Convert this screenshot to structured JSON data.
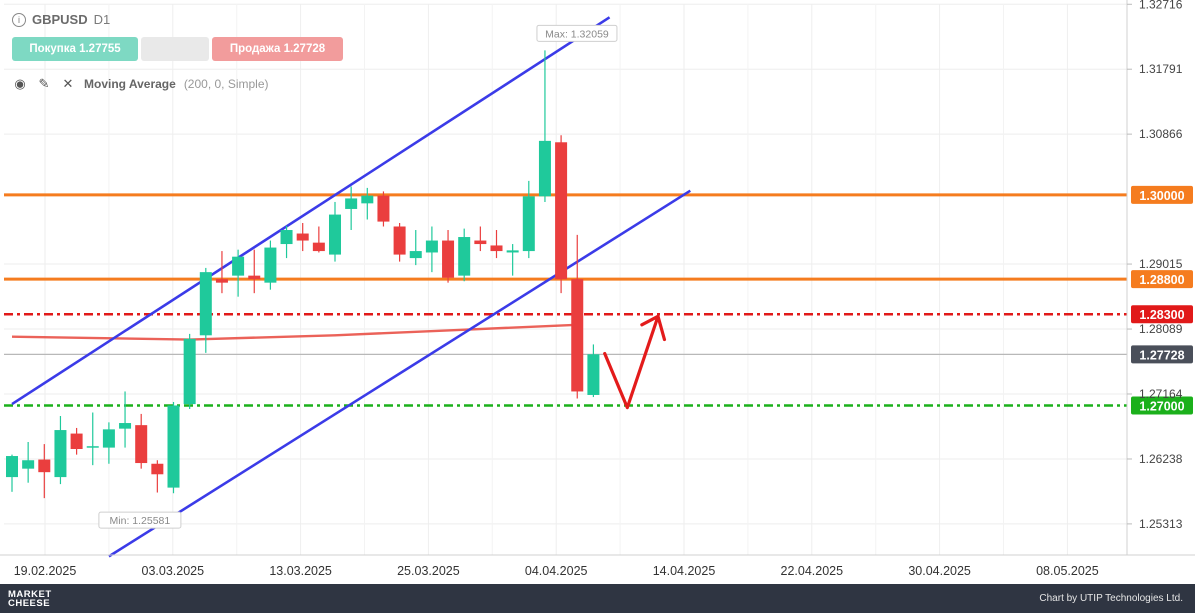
{
  "header": {
    "symbol": "GBPUSD",
    "timeframe": "D1",
    "buy_label": "Покупка 1.27755",
    "sell_label": "Продажа 1.27728",
    "indicator_name": "Moving Average",
    "indicator_params": "(200, 0, Simple)"
  },
  "footer": {
    "brand_line1": "MARKET",
    "brand_line2": "CHEESE",
    "credit": "Chart by UTIP Technologies Ltd."
  },
  "chart_data": {
    "type": "candlestick",
    "ylim": [
      1.2487,
      1.3272
    ],
    "price_axis_ticks": [
      "1.32716",
      "1.31791",
      "1.30866",
      "1.29015",
      "1.28089",
      "1.27164",
      "1.26238",
      "1.25313"
    ],
    "x_ticks": [
      "19.02.2025",
      "03.03.2025",
      "13.03.2025",
      "25.03.2025",
      "04.04.2025",
      "14.04.2025",
      "22.04.2025",
      "30.04.2025",
      "08.05.2025"
    ],
    "max_label": "Max: 1.32059",
    "min_label": "Min: 1.25581",
    "current_price_label": "1.27728",
    "candles": [
      {
        "o": 1.2598,
        "h": 1.263,
        "l": 1.2577,
        "c": 1.2628
      },
      {
        "o": 1.261,
        "h": 1.2648,
        "l": 1.259,
        "c": 1.2622
      },
      {
        "o": 1.2623,
        "h": 1.2645,
        "l": 1.2568,
        "c": 1.2605
      },
      {
        "o": 1.2598,
        "h": 1.2685,
        "l": 1.2588,
        "c": 1.2665
      },
      {
        "o": 1.266,
        "h": 1.2668,
        "l": 1.263,
        "c": 1.2638
      },
      {
        "o": 1.264,
        "h": 1.269,
        "l": 1.2615,
        "c": 1.2642
      },
      {
        "o": 1.264,
        "h": 1.2676,
        "l": 1.2617,
        "c": 1.2666
      },
      {
        "o": 1.2667,
        "h": 1.272,
        "l": 1.264,
        "c": 1.2675
      },
      {
        "o": 1.2672,
        "h": 1.2688,
        "l": 1.261,
        "c": 1.2618
      },
      {
        "o": 1.2617,
        "h": 1.2622,
        "l": 1.2576,
        "c": 1.2602
      },
      {
        "o": 1.2583,
        "h": 1.2705,
        "l": 1.2575,
        "c": 1.27
      },
      {
        "o": 1.2702,
        "h": 1.2802,
        "l": 1.2695,
        "c": 1.2795
      },
      {
        "o": 1.28,
        "h": 1.2896,
        "l": 1.2775,
        "c": 1.289
      },
      {
        "o": 1.288,
        "h": 1.292,
        "l": 1.286,
        "c": 1.2875
      },
      {
        "o": 1.2885,
        "h": 1.2922,
        "l": 1.2855,
        "c": 1.2912
      },
      {
        "o": 1.2885,
        "h": 1.2922,
        "l": 1.286,
        "c": 1.288
      },
      {
        "o": 1.2875,
        "h": 1.2935,
        "l": 1.2865,
        "c": 1.2925
      },
      {
        "o": 1.293,
        "h": 1.2956,
        "l": 1.291,
        "c": 1.295
      },
      {
        "o": 1.2945,
        "h": 1.296,
        "l": 1.292,
        "c": 1.2935
      },
      {
        "o": 1.2932,
        "h": 1.2955,
        "l": 1.2918,
        "c": 1.292
      },
      {
        "o": 1.2915,
        "h": 1.299,
        "l": 1.2905,
        "c": 1.2972
      },
      {
        "o": 1.298,
        "h": 1.3012,
        "l": 1.295,
        "c": 1.2995
      },
      {
        "o": 1.2988,
        "h": 1.301,
        "l": 1.2965,
        "c": 1.2999
      },
      {
        "o": 1.2999,
        "h": 1.3005,
        "l": 1.2955,
        "c": 1.2962
      },
      {
        "o": 1.2955,
        "h": 1.296,
        "l": 1.2905,
        "c": 1.2915
      },
      {
        "o": 1.291,
        "h": 1.295,
        "l": 1.29,
        "c": 1.292
      },
      {
        "o": 1.2918,
        "h": 1.2955,
        "l": 1.289,
        "c": 1.2935
      },
      {
        "o": 1.2935,
        "h": 1.295,
        "l": 1.2875,
        "c": 1.2882
      },
      {
        "o": 1.2885,
        "h": 1.2952,
        "l": 1.2877,
        "c": 1.294
      },
      {
        "o": 1.2935,
        "h": 1.2955,
        "l": 1.292,
        "c": 1.293
      },
      {
        "o": 1.2928,
        "h": 1.295,
        "l": 1.291,
        "c": 1.292
      },
      {
        "o": 1.2918,
        "h": 1.293,
        "l": 1.2885,
        "c": 1.2921
      },
      {
        "o": 1.292,
        "h": 1.302,
        "l": 1.291,
        "c": 1.2998
      },
      {
        "o": 1.2998,
        "h": 1.3206,
        "l": 1.299,
        "c": 1.3077
      },
      {
        "o": 1.3075,
        "h": 1.3085,
        "l": 1.286,
        "c": 1.288
      },
      {
        "o": 1.288,
        "h": 1.2943,
        "l": 1.271,
        "c": 1.272
      },
      {
        "o": 1.2715,
        "h": 1.2787,
        "l": 1.2712,
        "c": 1.2773
      }
    ],
    "horizontal_levels": [
      {
        "price": 1.3,
        "label": "1.30000",
        "style": "solid",
        "color": "#f57c1f"
      },
      {
        "price": 1.288,
        "label": "1.28800",
        "style": "solid",
        "color": "#f57c1f"
      },
      {
        "price": 1.283,
        "label": "1.28300",
        "style": "dashdot",
        "color": "#e11919"
      },
      {
        "price": 1.27,
        "label": "1.27000",
        "style": "dashdot",
        "color": "#1bb01b"
      }
    ],
    "channel_lines": [
      {
        "start": {
          "candle": 0,
          "price": 1.2702
        },
        "end": {
          "candle": 37,
          "price": 1.3253
        }
      },
      {
        "start": {
          "candle": 6,
          "price": 1.2485
        },
        "end": {
          "candle": 42,
          "price": 1.3006
        }
      }
    ],
    "moving_average": {
      "name": "Moving Average",
      "params": "(200, 0, Simple)",
      "color": "#e8463c",
      "points": [
        {
          "candle": 0,
          "price": 1.2798
        },
        {
          "candle": 11,
          "price": 1.2794
        },
        {
          "candle": 20,
          "price": 1.28
        },
        {
          "candle": 27,
          "price": 1.2807
        },
        {
          "candle": 35,
          "price": 1.2815
        }
      ]
    },
    "forecast_path": [
      {
        "candle": 36.7,
        "price": 1.2774
      },
      {
        "candle": 38.1,
        "price": 1.2697
      },
      {
        "candle": 40,
        "price": 1.2827
      },
      {
        "candle": 39.0,
        "price": 1.2815
      },
      {
        "candle": 40,
        "price": 1.2827
      },
      {
        "candle": 40.4,
        "price": 1.2794
      }
    ],
    "colors": {
      "bull": "#1fc99b",
      "bear": "#ea3e3e",
      "grid": "#eeeeee",
      "channel": "#3b3be8",
      "forecast": "#e31b1b",
      "current": "#b8b8b8"
    }
  }
}
